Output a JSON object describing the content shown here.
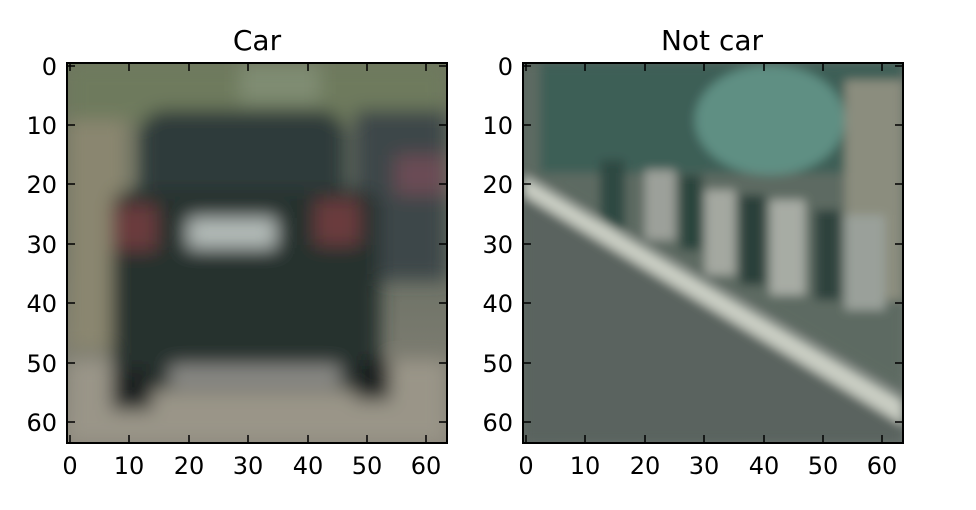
{
  "panels": [
    {
      "title": "Car",
      "xticks": [
        "0",
        "10",
        "20",
        "30",
        "40",
        "50",
        "60"
      ],
      "yticks": [
        "0",
        "10",
        "20",
        "30",
        "40",
        "50",
        "60"
      ],
      "image": "blurred rear view of a dark car on a road"
    },
    {
      "title": "Not car",
      "xticks": [
        "0",
        "10",
        "20",
        "30",
        "40",
        "50",
        "60"
      ],
      "yticks": [
        "0",
        "10",
        "20",
        "30",
        "40",
        "50",
        "60"
      ],
      "image": "blurred roadside with railing, trees and road"
    }
  ],
  "colors": {
    "axis": "#000000",
    "car_body": "#2a3738",
    "car_bg": "#7a7d69",
    "road": "#5f6b66",
    "foliage": "#355e54"
  }
}
